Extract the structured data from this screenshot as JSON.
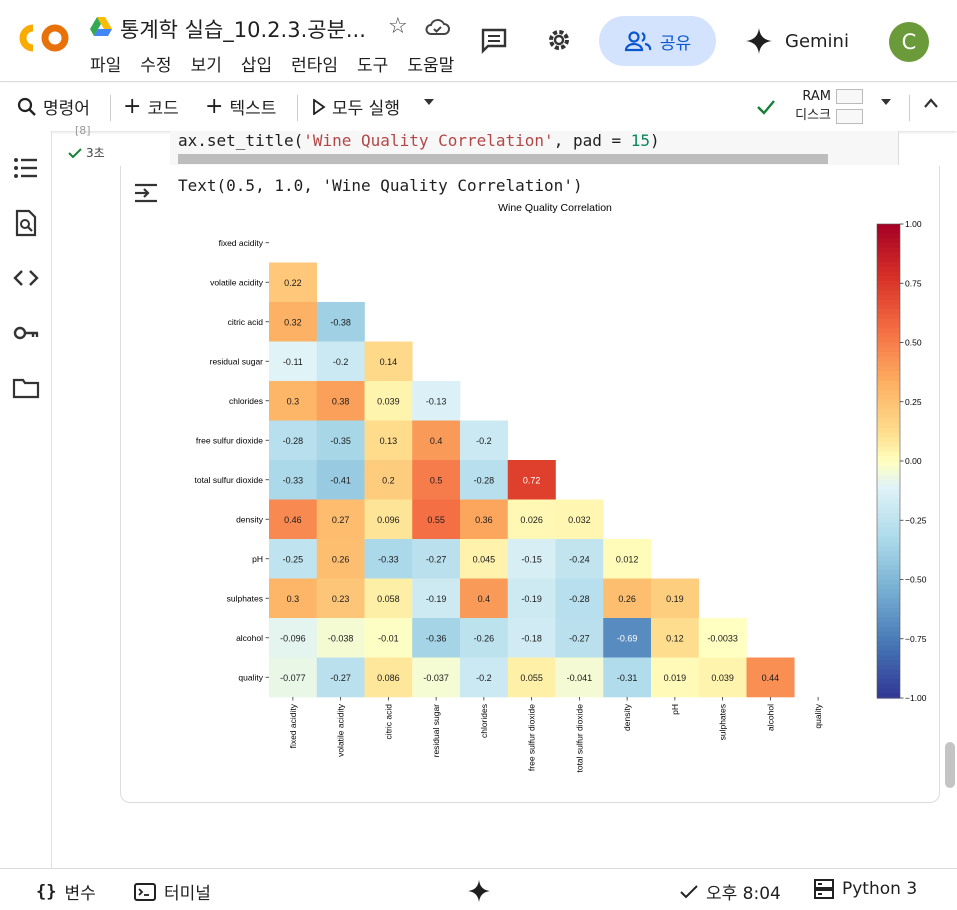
{
  "app": {
    "title": "통계학 실습_10.2.3.공분...",
    "menu": [
      "파일",
      "수정",
      "보기",
      "삽입",
      "런타임",
      "도구",
      "도움말"
    ],
    "share_label": "공유",
    "gemini_label": "Gemini",
    "avatar_initial": "C"
  },
  "toolbar": {
    "command_label": "명령어",
    "code_label": "코드",
    "text_label": "텍스트",
    "run_all_label": "모두 실행",
    "ram_label": "RAM",
    "disk_label": "디스크"
  },
  "cell": {
    "exec_count": "[8]",
    "exec_time": "3초",
    "code_prefix": "ax.set_title(",
    "code_string": "'Wine Quality Correlation'",
    "code_mid": ", pad = ",
    "code_number": "15",
    "code_suffix": ")",
    "output_text": "Text(0.5, 1.0, 'Wine Quality Correlation')"
  },
  "status": {
    "variables_label": "변수",
    "terminal_label": "터미널",
    "time_label": "오후 8:04",
    "runtime_label": "Python 3"
  },
  "colors": {
    "accent_blue": "#0b57d0",
    "share_bg": "#d3e3fd",
    "avatar_bg": "#6a9a3a",
    "check_green": "#188038"
  },
  "chart_data": {
    "type": "heatmap",
    "title": "Wine Quality Correlation",
    "variables": [
      "fixed acidity",
      "volatile acidity",
      "citric acid",
      "residual sugar",
      "chlorides",
      "free sulfur dioxide",
      "total sulfur dioxide",
      "density",
      "pH",
      "sulphates",
      "alcohol",
      "quality"
    ],
    "mask": "upper triangle (incl. diagonal)",
    "colormap": "RdYlBu_r",
    "vmin": -1.0,
    "vmax": 1.0,
    "colorbar_ticks": [
      "1.00",
      "0.75",
      "0.50",
      "0.25",
      "0.00",
      "−0.25",
      "−0.50",
      "−0.75",
      "−1.00"
    ],
    "values": [
      [],
      [
        "0.22"
      ],
      [
        "0.32",
        "-0.38"
      ],
      [
        "-0.11",
        "-0.2",
        "0.14"
      ],
      [
        "0.3",
        "0.38",
        "0.039",
        "-0.13"
      ],
      [
        "-0.28",
        "-0.35",
        "0.13",
        "0.4",
        "-0.2"
      ],
      [
        "-0.33",
        "-0.41",
        "0.2",
        "0.5",
        "-0.28",
        "0.72"
      ],
      [
        "0.46",
        "0.27",
        "0.096",
        "0.55",
        "0.36",
        "0.026",
        "0.032"
      ],
      [
        "-0.25",
        "0.26",
        "-0.33",
        "-0.27",
        "0.045",
        "-0.15",
        "-0.24",
        "0.012"
      ],
      [
        "0.3",
        "0.23",
        "0.058",
        "-0.19",
        "0.4",
        "-0.19",
        "-0.28",
        "0.26",
        "0.19"
      ],
      [
        "-0.096",
        "-0.038",
        "-0.01",
        "-0.36",
        "-0.26",
        "-0.18",
        "-0.27",
        "-0.69",
        "0.12",
        "-0.0033"
      ],
      [
        "-0.077",
        "-0.27",
        "0.086",
        "-0.037",
        "-0.2",
        "0.055",
        "-0.041",
        "-0.31",
        "0.019",
        "0.039",
        "0.44"
      ]
    ]
  }
}
